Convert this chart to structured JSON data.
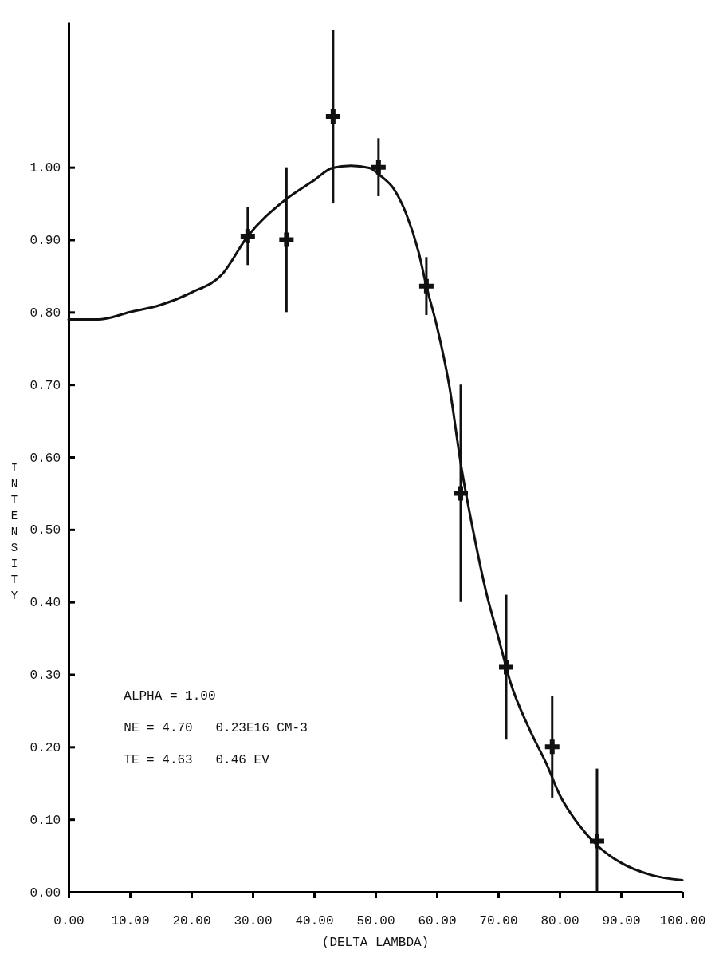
{
  "chart_data": {
    "type": "scatter",
    "xlabel": "(DELTA LAMBDA)",
    "ylabel": "INTENSITY",
    "xlim": [
      0,
      100
    ],
    "ylim": [
      0,
      1.2
    ],
    "xticks": [
      {
        "value": 0,
        "label": "0.00"
      },
      {
        "value": 10,
        "label": "10.00"
      },
      {
        "value": 20,
        "label": "20.00"
      },
      {
        "value": 30,
        "label": "30.00"
      },
      {
        "value": 40,
        "label": "40.00"
      },
      {
        "value": 50,
        "label": "50.00"
      },
      {
        "value": 60,
        "label": "60.00"
      },
      {
        "value": 70,
        "label": "70.00"
      },
      {
        "value": 80,
        "label": "80.00"
      },
      {
        "value": 90,
        "label": "90.00"
      },
      {
        "value": 100,
        "label": "100.00"
      }
    ],
    "yticks": [
      {
        "value": 0,
        "label": "0.00"
      },
      {
        "value": 0.1,
        "label": "0.10"
      },
      {
        "value": 0.2,
        "label": "0.20"
      },
      {
        "value": 0.3,
        "label": "0.30"
      },
      {
        "value": 0.4,
        "label": "0.40"
      },
      {
        "value": 0.5,
        "label": "0.50"
      },
      {
        "value": 0.6,
        "label": "0.60"
      },
      {
        "value": 0.7,
        "label": "0.70"
      },
      {
        "value": 0.8,
        "label": "0.80"
      },
      {
        "value": 0.9,
        "label": "0.90"
      },
      {
        "value": 1,
        "label": "1.00"
      }
    ],
    "annotations": [
      "ALPHA = 1.00",
      "NE = 4.70   0.23E16 CM-3",
      "TE = 4.63   0.46 EV"
    ],
    "series": [
      {
        "color": "#111111",
        "marker": "cross",
        "x": [
          29.2,
          35.5,
          43.1,
          50.5,
          58.3,
          63.9,
          71.3,
          78.8,
          86.1
        ],
        "values": [
          0.905,
          0.9,
          1.07,
          1.0,
          0.836,
          0.55,
          0.31,
          0.2,
          0.07
        ],
        "errors": [
          0.04,
          0.1,
          0.12,
          0.04,
          0.04,
          0.15,
          0.1,
          0.07,
          [
            0,
            0.17
          ]
        ]
      },
      {
        "type": "line",
        "color": "#111111",
        "marker": "none",
        "line_style": "solid",
        "x": [
          0,
          5,
          10,
          15,
          20,
          25,
          29.2,
          35,
          40,
          43,
          46,
          49,
          51,
          53,
          55,
          57,
          58.3,
          60,
          62,
          64,
          66,
          68,
          70,
          72,
          75,
          78,
          80,
          83,
          86,
          90,
          95,
          100
        ],
        "values": [
          0.79,
          0.79,
          0.8,
          0.81,
          0.827,
          0.852,
          0.905,
          0.953,
          0.982,
          0.999,
          1.002,
          0.999,
          0.987,
          0.97,
          0.936,
          0.884,
          0.836,
          0.781,
          0.7,
          0.586,
          0.495,
          0.415,
          0.352,
          0.289,
          0.226,
          0.174,
          0.134,
          0.094,
          0.065,
          0.04,
          0.023,
          0.016
        ]
      }
    ]
  }
}
